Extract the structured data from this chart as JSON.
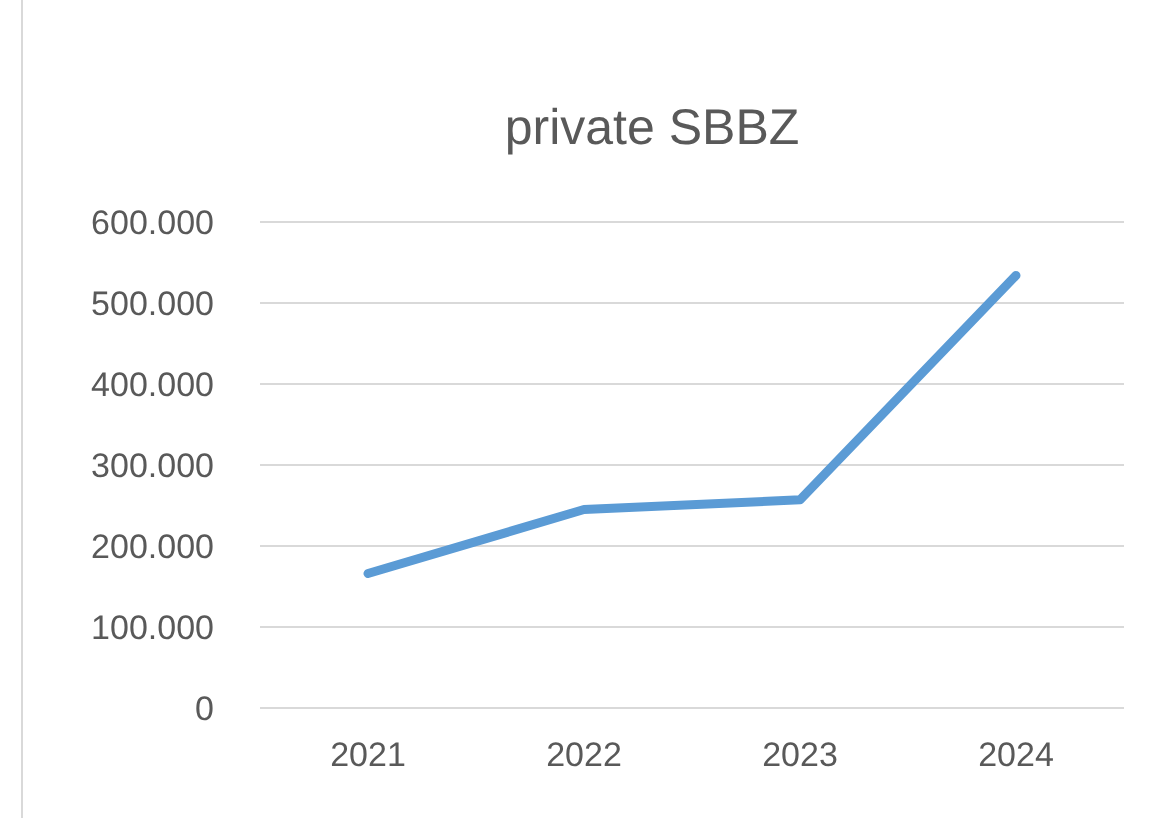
{
  "chart_data": {
    "type": "line",
    "title": "private SBBZ",
    "categories": [
      "2021",
      "2022",
      "2023",
      "2024"
    ],
    "series": [
      {
        "color": "#5b9bd5",
        "values": [
          166000,
          245000,
          257000,
          534000
        ]
      }
    ],
    "ylim": [
      0,
      600000
    ],
    "yticks": [
      {
        "value": 0,
        "label": "0"
      },
      {
        "value": 100000,
        "label": "100.000"
      },
      {
        "value": 200000,
        "label": "200.000"
      },
      {
        "value": 300000,
        "label": "300.000"
      },
      {
        "value": 400000,
        "label": "400.000"
      },
      {
        "value": 500000,
        "label": "500.000"
      },
      {
        "value": 600000,
        "label": "600.000"
      }
    ],
    "grid": "y",
    "marker": "none",
    "line_style": "solid"
  }
}
